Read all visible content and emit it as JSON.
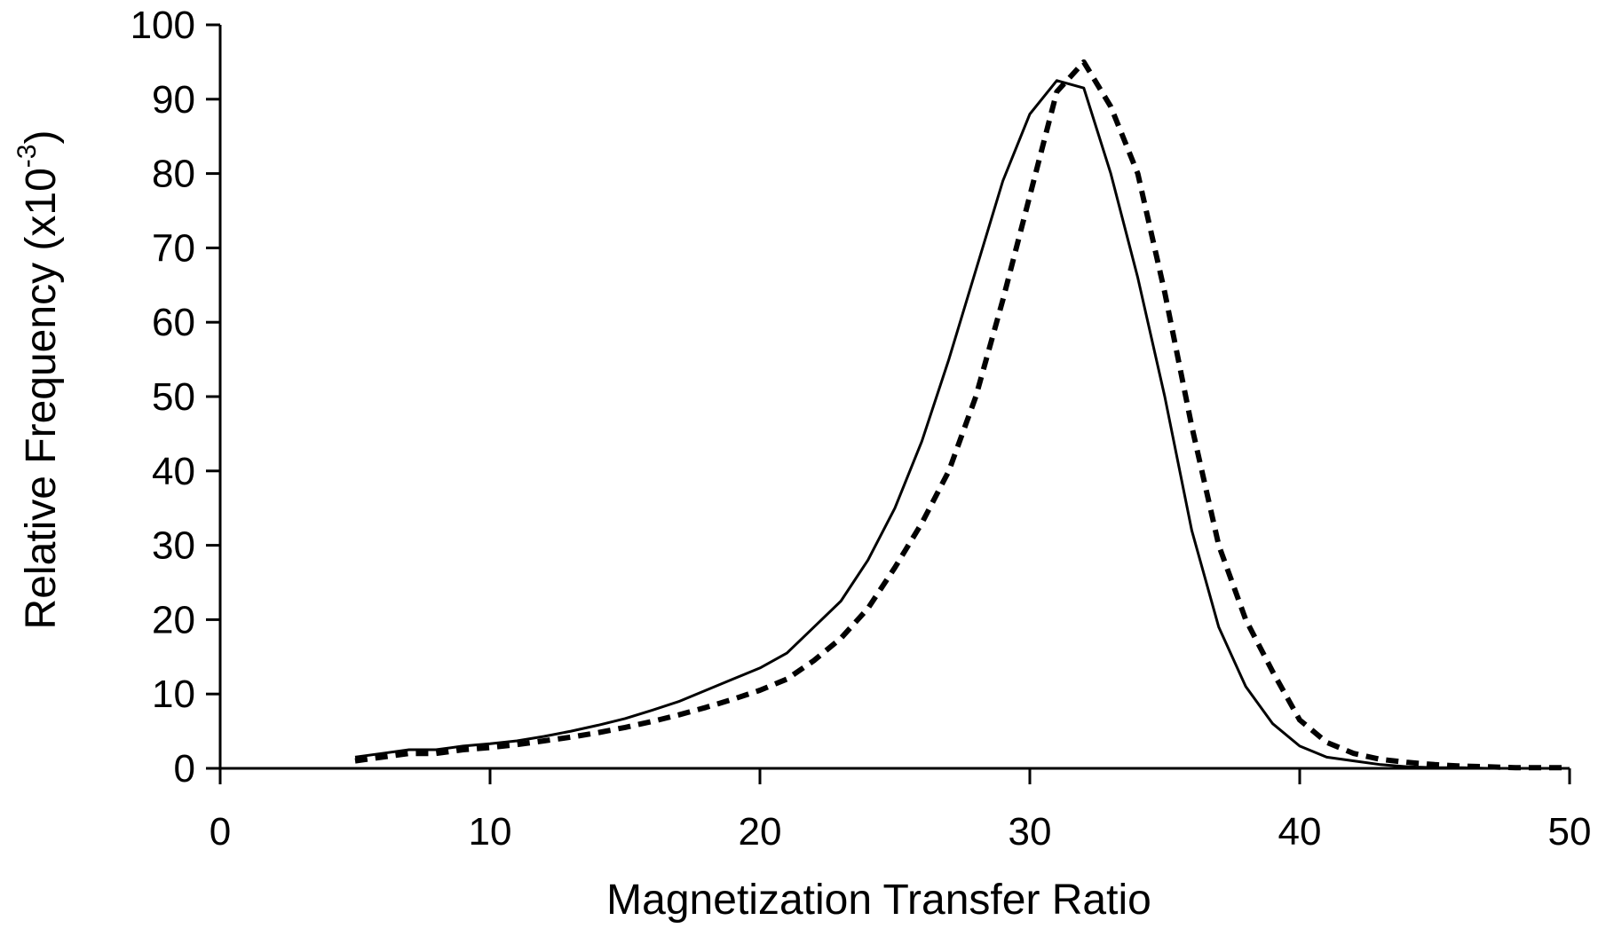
{
  "chart_data": {
    "type": "line",
    "title": "",
    "xlabel": "Magnetization Transfer Ratio",
    "ylabel": "Relative Frequency (x10",
    "ylabel_exponent": "-3",
    "ylabel_close": ")",
    "xlim": [
      0,
      50
    ],
    "ylim": [
      0,
      100
    ],
    "xticks": [
      0,
      10,
      20,
      30,
      40,
      50
    ],
    "yticks": [
      0,
      10,
      20,
      30,
      40,
      50,
      60,
      70,
      80,
      90,
      100
    ],
    "grid": false,
    "legend": "none",
    "colors": {
      "line": "#000000",
      "axis": "#000000",
      "background": "#ffffff"
    },
    "series": [
      {
        "style": "solid",
        "x": [
          5,
          6,
          7,
          8,
          9,
          10,
          11,
          12,
          13,
          14,
          15,
          16,
          17,
          18,
          19,
          20,
          21,
          22,
          23,
          24,
          25,
          26,
          27,
          28,
          29,
          30,
          31,
          32,
          33,
          34,
          35,
          36,
          37,
          38,
          39,
          40,
          41,
          42,
          43,
          44,
          45,
          46,
          47,
          48,
          49,
          50
        ],
        "y": [
          1.5,
          2,
          2.5,
          2.5,
          3,
          3.3,
          3.7,
          4.3,
          5,
          5.8,
          6.7,
          7.8,
          9,
          10.5,
          12,
          13.5,
          15.5,
          19,
          22.5,
          28,
          35,
          44,
          55,
          67,
          79,
          88,
          92.5,
          91.5,
          80,
          66,
          50,
          32,
          19,
          11,
          6,
          3,
          1.5,
          1,
          0.5,
          0.2,
          0.1,
          0.1,
          0,
          0,
          0,
          0
        ]
      },
      {
        "style": "dashed",
        "x": [
          5,
          6,
          7,
          8,
          9,
          10,
          11,
          12,
          13,
          14,
          15,
          16,
          17,
          18,
          19,
          20,
          21,
          22,
          23,
          24,
          25,
          26,
          27,
          28,
          29,
          30,
          31,
          32,
          33,
          34,
          35,
          36,
          37,
          38,
          39,
          40,
          41,
          42,
          43,
          44,
          45,
          46,
          47,
          48,
          49,
          50
        ],
        "y": [
          1,
          1.5,
          2,
          2,
          2.5,
          2.8,
          3.2,
          3.7,
          4.2,
          4.8,
          5.5,
          6.3,
          7.2,
          8.2,
          9.3,
          10.5,
          12,
          14.5,
          17.5,
          21.5,
          27,
          33,
          40,
          50,
          63,
          77,
          91,
          95,
          89,
          80,
          64,
          46,
          30,
          20,
          13,
          6.5,
          3.5,
          2,
          1.2,
          0.8,
          0.5,
          0.3,
          0.2,
          0.1,
          0.1,
          0.1
        ]
      }
    ]
  }
}
